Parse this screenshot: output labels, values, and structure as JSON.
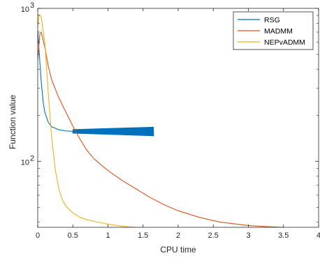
{
  "chart_data": {
    "type": "line",
    "title": "",
    "xlabel": "CPU time",
    "ylabel": "Function value",
    "xlim": [
      0,
      4
    ],
    "ylim": [
      37,
      1000
    ],
    "yscale": "log",
    "grid": false,
    "legend_position": "top-right",
    "x_ticks": [
      "0",
      "0.5",
      "1",
      "1.5",
      "2",
      "2.5",
      "3",
      "3.5",
      "4"
    ],
    "y_tick_labels": [
      {
        "value": 100,
        "base": "10",
        "exp": "2"
      },
      {
        "value": 1000,
        "base": "10",
        "exp": "3"
      }
    ],
    "series": [
      {
        "name": "RSG",
        "color": "#0072BD",
        "x": [
          0,
          0.02,
          0.05,
          0.08,
          0.1,
          0.15,
          0.2,
          0.3,
          0.4,
          0.5,
          0.6,
          0.8,
          1.0,
          1.2,
          1.4,
          1.6,
          1.65
        ],
        "y": [
          720,
          520,
          330,
          240,
          210,
          180,
          168,
          161,
          158,
          157,
          157,
          157,
          157,
          157,
          157,
          157,
          157
        ],
        "oscillation": {
          "from_x": 0.5,
          "to_x": 1.65,
          "y_low_start": 152,
          "y_high_start": 162,
          "y_low_end": 146,
          "y_high_end": 168
        }
      },
      {
        "name": "MADMM",
        "color": "#D95319",
        "x": [
          0,
          0.03,
          0.05,
          0.1,
          0.15,
          0.2,
          0.3,
          0.4,
          0.5,
          0.6,
          0.7,
          0.8,
          0.9,
          1.0,
          1.2,
          1.4,
          1.6,
          1.8,
          2.0,
          2.3,
          2.6,
          3.0,
          3.3,
          3.5
        ],
        "y": [
          460,
          680,
          700,
          560,
          420,
          340,
          260,
          210,
          170,
          140,
          118,
          104,
          95,
          87,
          75,
          66,
          58,
          52,
          47.5,
          43,
          40,
          38,
          37.3,
          37
        ],
        "dash_tail": {
          "from_x": 3.0,
          "to_x": 3.5
        }
      },
      {
        "name": "NEPvADMM",
        "color": "#EDB120",
        "x": [
          0,
          0.02,
          0.05,
          0.1,
          0.15,
          0.2,
          0.25,
          0.3,
          0.35,
          0.4,
          0.5,
          0.6,
          0.7,
          0.8,
          1.0,
          1.2,
          1.4,
          1.5
        ],
        "y": [
          760,
          910,
          880,
          600,
          280,
          140,
          88,
          66,
          56,
          51,
          46,
          43,
          41.5,
          40.5,
          38.8,
          37.6,
          37,
          37
        ]
      }
    ]
  }
}
